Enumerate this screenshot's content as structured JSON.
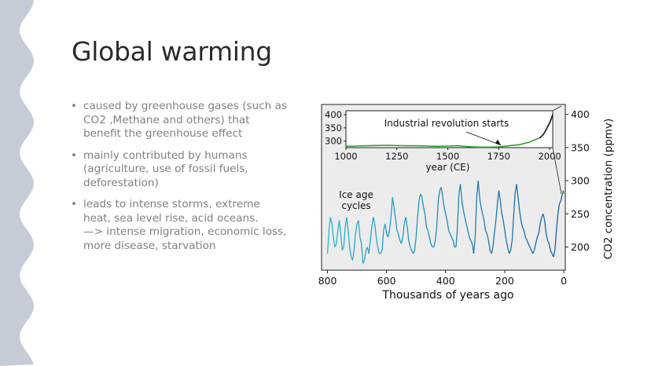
{
  "slide": {
    "title": "Global warming",
    "bullet_symbol": "•",
    "bullets": [
      {
        "lines": [
          "caused by greenhouse gases (such as",
          "CO2 ,Methane and others) that",
          "benefit the greenhouse effect"
        ]
      },
      {
        "lines": [
          "mainly contributed by humans",
          "(agriculture, use of fossil fuels,",
          "deforestation)"
        ]
      },
      {
        "lines": [
          "leads to intense storms, extreme",
          "heat, sea level rise, acid oceans.",
          "—> intense migration, economic loss,",
          "more disease, starvation"
        ]
      }
    ],
    "colors": {
      "band": "#c6cbd8",
      "title": "#2b2b2b",
      "text": "#808080"
    }
  },
  "chart_data": [
    {
      "type": "line",
      "panel": "main",
      "xlabel": "Thousands of years ago",
      "ylabel": "CO2 concentration (ppmv)",
      "xlim": [
        820,
        -5
      ],
      "ylim": [
        165,
        415
      ],
      "xticks": [
        "800",
        "600",
        "400",
        "200",
        "0"
      ],
      "yticks": [
        "200",
        "250",
        "300",
        "350",
        "400"
      ],
      "annotation": "Ice age cycles",
      "colors": {
        "older": "#2bb5cc",
        "newer": "#1a5fa8",
        "modern": "#2ca02c",
        "background": "#ececec"
      },
      "series": [
        {
          "x": [
            800,
            795,
            790,
            785,
            780,
            775,
            770,
            765,
            760,
            755,
            750,
            745,
            740,
            735,
            730,
            725,
            720,
            715,
            710,
            705,
            700,
            695,
            690,
            685,
            680,
            675,
            670,
            665,
            660,
            655,
            650,
            645,
            640,
            635,
            630,
            625,
            620,
            615,
            610,
            605,
            600,
            595,
            590,
            585,
            580,
            575,
            570,
            565,
            560,
            555,
            550,
            545,
            540,
            535,
            530,
            525,
            520,
            515,
            510,
            505,
            500,
            495,
            490,
            485,
            480,
            475,
            470,
            465,
            460,
            455,
            450,
            445,
            440,
            435,
            430,
            425,
            420,
            415,
            410,
            405,
            400,
            395,
            390,
            385,
            380,
            375,
            370,
            365,
            360,
            355,
            350,
            345,
            340,
            335,
            330,
            325,
            320,
            315,
            310,
            305,
            300,
            295,
            290,
            285,
            280,
            275,
            270,
            265,
            260,
            255,
            250,
            245,
            240,
            235,
            230,
            225,
            220,
            215,
            210,
            205,
            200,
            195,
            190,
            185,
            180,
            175,
            170,
            165,
            160,
            155,
            150,
            145,
            140,
            135,
            130,
            125,
            120,
            115,
            110,
            105,
            100,
            95,
            90,
            85,
            80,
            75,
            70,
            65,
            60,
            55,
            50,
            45,
            40,
            35,
            30,
            25,
            20,
            15,
            10,
            5,
            2,
            0
          ],
          "y": [
            190,
            225,
            245,
            235,
            215,
            200,
            205,
            225,
            240,
            220,
            195,
            200,
            230,
            245,
            225,
            200,
            185,
            180,
            195,
            220,
            235,
            240,
            215,
            205,
            175,
            180,
            195,
            200,
            190,
            210,
            230,
            245,
            235,
            215,
            200,
            190,
            190,
            195,
            225,
            235,
            220,
            215,
            225,
            245,
            275,
            260,
            245,
            225,
            220,
            210,
            205,
            215,
            235,
            245,
            230,
            210,
            200,
            195,
            190,
            195,
            215,
            245,
            270,
            280,
            275,
            260,
            250,
            230,
            225,
            215,
            205,
            200,
            200,
            210,
            230,
            270,
            285,
            290,
            275,
            260,
            250,
            240,
            225,
            220,
            215,
            210,
            200,
            200,
            230,
            280,
            295,
            270,
            255,
            245,
            235,
            225,
            215,
            210,
            205,
            190,
            215,
            275,
            300,
            275,
            260,
            250,
            240,
            225,
            220,
            210,
            195,
            190,
            200,
            220,
            240,
            265,
            285,
            270,
            250,
            240,
            225,
            210,
            200,
            190,
            195,
            210,
            245,
            280,
            295,
            275,
            255,
            240,
            230,
            225,
            215,
            210,
            205,
            200,
            195,
            190,
            195,
            205,
            215,
            220,
            235,
            245,
            250,
            240,
            220,
            210,
            205,
            195,
            190,
            185,
            195,
            225,
            250,
            265,
            270,
            280,
            285,
            280
          ]
        }
      ]
    },
    {
      "type": "line",
      "panel": "inset",
      "title": "Industrial revolution starts",
      "xlabel": "year (CE)",
      "xlim": [
        1000,
        2015
      ],
      "ylim": [
        275,
        415
      ],
      "xticks": [
        "1000",
        "1250",
        "1500",
        "1750",
        "2000"
      ],
      "yticks": [
        "300",
        "350",
        "400"
      ],
      "series": [
        {
          "x": [
            1000,
            1050,
            1100,
            1150,
            1200,
            1250,
            1300,
            1350,
            1400,
            1450,
            1500,
            1550,
            1600,
            1650,
            1700,
            1750,
            1800,
            1850,
            1900,
            1950
          ],
          "y": [
            280,
            281,
            282,
            283,
            284,
            283,
            282,
            282,
            281,
            280,
            281,
            282,
            279,
            277,
            277,
            278,
            282,
            286,
            296,
            312
          ]
        },
        {
          "x": [
            1950,
            1960,
            1970,
            1980,
            1990,
            2000,
            2010,
            2015
          ],
          "y": [
            312,
            318,
            326,
            339,
            354,
            369,
            389,
            401
          ]
        }
      ]
    }
  ]
}
